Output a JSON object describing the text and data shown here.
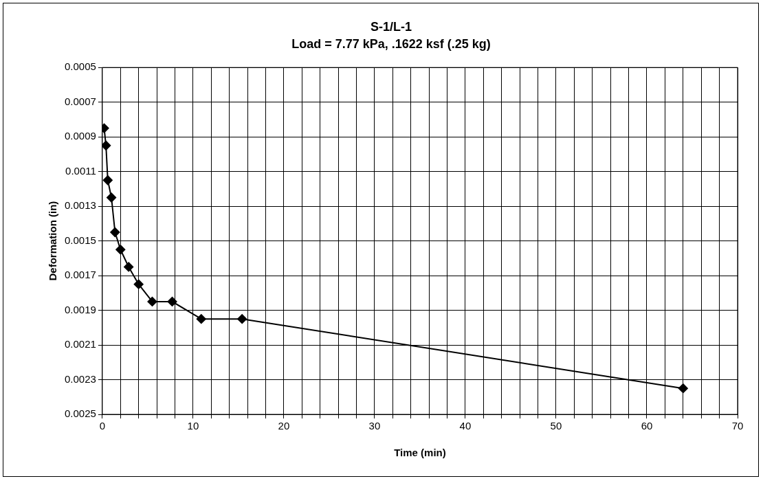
{
  "chart_data": {
    "type": "line",
    "title": "S-1/L-1",
    "subtitle": "Load = 7.77 kPa, .1622 ksf (.25 kg)",
    "xlabel": "Time (min)",
    "ylabel": "Deformation (in)",
    "x": [
      0.2,
      0.4,
      0.6,
      1,
      1.4,
      2,
      2.9,
      4,
      5.5,
      7.7,
      10.9,
      15.4,
      64
    ],
    "series": [
      {
        "color": "#000000",
        "values": [
          0.00085,
          0.00095,
          0.00115,
          0.00125,
          0.00145,
          0.00155,
          0.00165,
          0.00175,
          0.00185,
          0.00185,
          0.00195,
          0.00195,
          0.00235
        ]
      }
    ],
    "xlim": [
      0,
      70
    ],
    "xticks": [
      0,
      {
        "value": 2,
        "label": null
      },
      {
        "value": 4,
        "label": null
      },
      {
        "value": 6,
        "label": null
      },
      {
        "value": 8,
        "label": null
      },
      10,
      {
        "value": 12,
        "label": null
      },
      {
        "value": 14,
        "label": null
      },
      {
        "value": 16,
        "label": null
      },
      {
        "value": 18,
        "label": null
      },
      20,
      {
        "value": 22,
        "label": null
      },
      {
        "value": 24,
        "label": null
      },
      {
        "value": 26,
        "label": null
      },
      {
        "value": 28,
        "label": null
      },
      30,
      {
        "value": 32,
        "label": null
      },
      {
        "value": 34,
        "label": null
      },
      {
        "value": 36,
        "label": null
      },
      {
        "value": 38,
        "label": null
      },
      40,
      {
        "value": 42,
        "label": null
      },
      {
        "value": 44,
        "label": null
      },
      {
        "value": 46,
        "label": null
      },
      {
        "value": 48,
        "label": null
      },
      50,
      {
        "value": 52,
        "label": null
      },
      {
        "value": 54,
        "label": null
      },
      {
        "value": 56,
        "label": null
      },
      {
        "value": 58,
        "label": null
      },
      60,
      {
        "value": 62,
        "label": null
      },
      {
        "value": 64,
        "label": null
      },
      {
        "value": 66,
        "label": null
      },
      {
        "value": 68,
        "label": null
      },
      70
    ],
    "ylim": [
      0.0025,
      0.0005
    ],
    "yticks": [
      0.0005,
      0.0007,
      0.0009,
      0.0011,
      0.0013,
      0.0015,
      0.0017,
      0.0019,
      0.0021,
      0.0023,
      0.0025
    ],
    "grid": true,
    "legend": false,
    "marker": "diamond",
    "line_style": "solid"
  }
}
